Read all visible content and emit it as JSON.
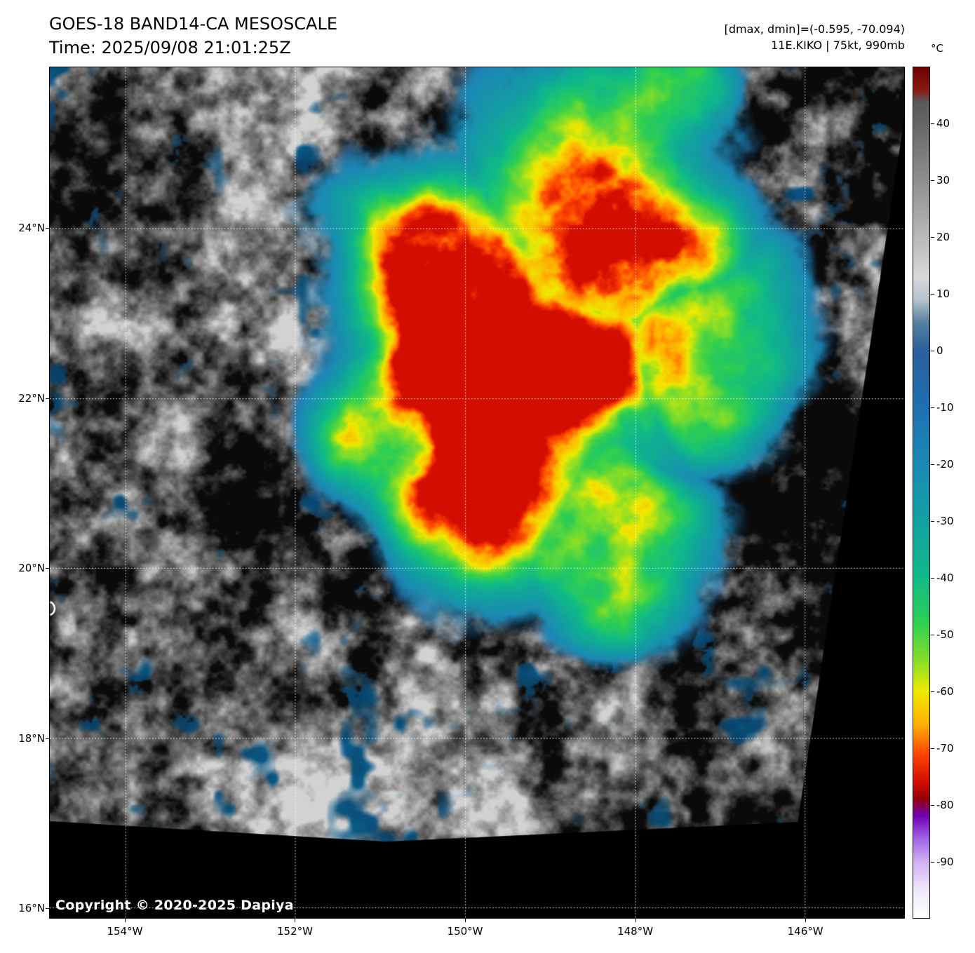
{
  "header": {
    "title": "GOES-18 BAND14-CA MESOSCALE",
    "time": "Time: 2025/09/08 21:01:25Z",
    "range_info": "[dmax, dmin]=(-0.595, -70.094)",
    "storm_info": "11E.KIKO | 75kt, 990mb"
  },
  "map": {
    "copyright": "Copyright © 2020-2025 Dapiya",
    "extent": {
      "lon_min": -154.89,
      "lon_max": -144.83,
      "lat_min": 15.88,
      "lat_max": 25.9
    },
    "lat_ticks": [
      {
        "deg": 24,
        "label": "24°N"
      },
      {
        "deg": 22,
        "label": "22°N"
      },
      {
        "deg": 20,
        "label": "20°N"
      },
      {
        "deg": 18,
        "label": "18°N"
      },
      {
        "deg": 16,
        "label": "16°N"
      }
    ],
    "lon_ticks": [
      {
        "deg": -154,
        "label": "154°W"
      },
      {
        "deg": -152,
        "label": "152°W"
      },
      {
        "deg": -150,
        "label": "150°W"
      },
      {
        "deg": -148,
        "label": "148°W"
      },
      {
        "deg": -146,
        "label": "146°W"
      }
    ]
  },
  "colorbar": {
    "unit": "°C",
    "vmax": 50,
    "vmin": -100,
    "ticks": [
      {
        "value": 40,
        "label": "40"
      },
      {
        "value": 30,
        "label": "30"
      },
      {
        "value": 20,
        "label": "20"
      },
      {
        "value": 10,
        "label": "10"
      },
      {
        "value": 0,
        "label": "0"
      },
      {
        "value": -10,
        "label": "-10"
      },
      {
        "value": -20,
        "label": "-20"
      },
      {
        "value": -30,
        "label": "-30"
      },
      {
        "value": -40,
        "label": "-40"
      },
      {
        "value": -50,
        "label": "-50"
      },
      {
        "value": -60,
        "label": "-60"
      },
      {
        "value": -70,
        "label": "-70"
      },
      {
        "value": -80,
        "label": "-80"
      },
      {
        "value": -90,
        "label": "-90"
      }
    ],
    "stops": [
      {
        "t": 50,
        "c": "#6b0000"
      },
      {
        "t": 46,
        "c": "#8c1a10"
      },
      {
        "t": 44,
        "c": "#585858"
      },
      {
        "t": 38,
        "c": "#6e6e6e"
      },
      {
        "t": 24,
        "c": "#a8a8a8"
      },
      {
        "t": 13,
        "c": "#d8d8d8"
      },
      {
        "t": 9,
        "c": "#b4c3cd"
      },
      {
        "t": 5,
        "c": "#55809f"
      },
      {
        "t": 0,
        "c": "#2a5f9a"
      },
      {
        "t": -10,
        "c": "#1e6fb0"
      },
      {
        "t": -20,
        "c": "#1b8ab4"
      },
      {
        "t": -30,
        "c": "#13a0a2"
      },
      {
        "t": -40,
        "c": "#10ba88"
      },
      {
        "t": -48,
        "c": "#2ecf52"
      },
      {
        "t": -55,
        "c": "#8bdf25"
      },
      {
        "t": -60,
        "c": "#f0ea00"
      },
      {
        "t": -66,
        "c": "#ffae00"
      },
      {
        "t": -71,
        "c": "#ff4600"
      },
      {
        "t": -76,
        "c": "#d30d00"
      },
      {
        "t": -79,
        "c": "#930008"
      },
      {
        "t": -82,
        "c": "#6f00b4"
      },
      {
        "t": -86,
        "c": "#a063e6"
      },
      {
        "t": -90,
        "c": "#cfaef2"
      },
      {
        "t": -95,
        "c": "#efe8fc"
      },
      {
        "t": -100,
        "c": "#ffffff"
      }
    ]
  },
  "chart_data": {
    "type": "heatmap",
    "title": "GOES-18 BAND14-CA MESOSCALE",
    "time": "2025/09/08 21:01:25Z",
    "storm": {
      "designation": "11E",
      "name": "KIKO",
      "intensity": "75kt",
      "pressure": "990mb"
    },
    "dmax": -0.595,
    "dmin": -70.094,
    "colorbar": {
      "unit": "°C",
      "range": [
        -100,
        50
      ],
      "ticks": [
        40,
        30,
        20,
        10,
        0,
        -10,
        -20,
        -30,
        -40,
        -50,
        -60,
        -70,
        -80,
        -90
      ]
    },
    "x_ticks": [
      "154°W",
      "152°W",
      "150°W",
      "148°W",
      "146°W"
    ],
    "y_ticks": [
      "24°N",
      "22°N",
      "20°N",
      "18°N",
      "16°N"
    ],
    "features": {
      "cold_cloud_core": {
        "approx_lon": -150.1,
        "approx_lat": 21.6,
        "approx_temp_c": -70
      }
    }
  }
}
